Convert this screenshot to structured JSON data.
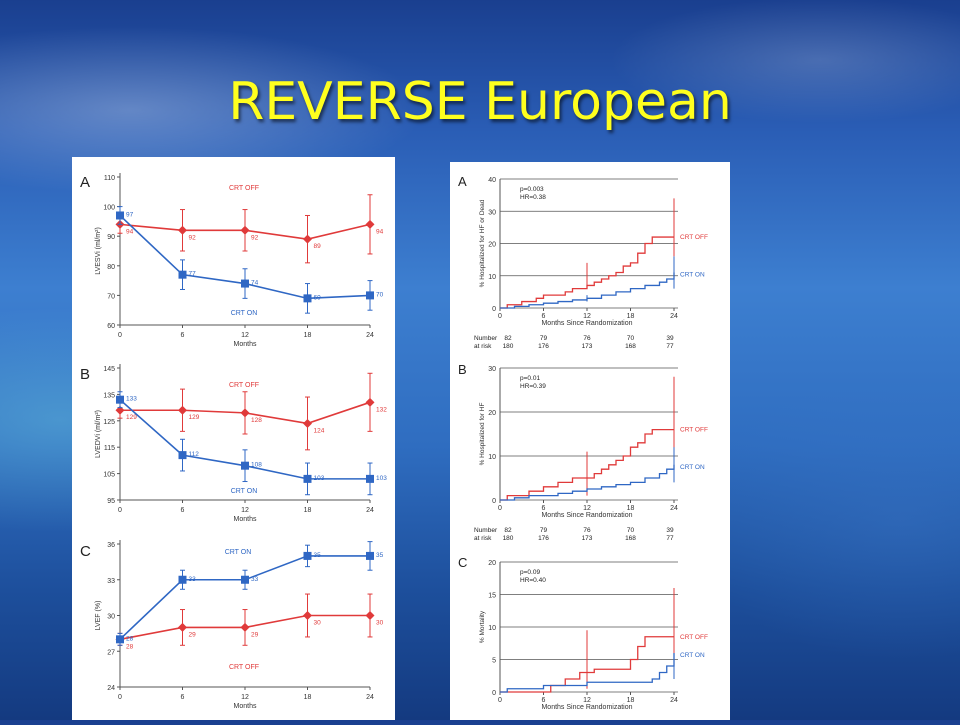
{
  "slide": {
    "title": "REVERSE European"
  },
  "colors": {
    "crt_off": "#e03a3a",
    "crt_on": "#2f67c4",
    "title": "#ffff1e"
  },
  "chart_data": [
    {
      "id": "A",
      "type": "line",
      "panel_letter": "A",
      "xlabel": "Months",
      "ylabel": "LVESVi (ml/m²)",
      "x": [
        0,
        6,
        12,
        18,
        24
      ],
      "xlim": [
        0,
        24
      ],
      "ylim": [
        60,
        110
      ],
      "yticks": [
        60,
        70,
        80,
        90,
        100,
        110
      ],
      "xticks": [
        0,
        6,
        12,
        18,
        24
      ],
      "series": [
        {
          "name": "CRT OFF",
          "values": [
            94,
            92,
            92,
            89,
            94
          ],
          "labels": [
            "94",
            "92",
            "92",
            "89",
            "94"
          ],
          "err": [
            3,
            7,
            7,
            8,
            10
          ]
        },
        {
          "name": "CRT ON",
          "values": [
            97,
            77,
            74,
            69,
            70
          ],
          "labels": [
            "97",
            "77",
            "74",
            "69",
            "70"
          ],
          "err": [
            3,
            5,
            5,
            5,
            5
          ]
        }
      ]
    },
    {
      "id": "B",
      "type": "line",
      "panel_letter": "B",
      "xlabel": "Months",
      "ylabel": "LVEDVi (ml/m²)",
      "x": [
        0,
        6,
        12,
        18,
        24
      ],
      "xlim": [
        0,
        24
      ],
      "ylim": [
        95,
        145
      ],
      "yticks": [
        95,
        105,
        115,
        125,
        135,
        145
      ],
      "xticks": [
        0,
        6,
        12,
        18,
        24
      ],
      "series": [
        {
          "name": "CRT OFF",
          "values": [
            129,
            129,
            128,
            124,
            132
          ],
          "labels": [
            "129",
            "129",
            "128",
            "124",
            "132"
          ],
          "err": [
            3,
            8,
            8,
            10,
            11
          ]
        },
        {
          "name": "CRT ON",
          "values": [
            133,
            112,
            108,
            103,
            103
          ],
          "labels": [
            "133",
            "112",
            "108",
            "103",
            "103"
          ],
          "err": [
            3,
            6,
            6,
            6,
            6
          ]
        }
      ]
    },
    {
      "id": "C",
      "type": "line",
      "panel_letter": "C",
      "xlabel": "Months",
      "ylabel": "LVEF (%)",
      "x": [
        0,
        6,
        12,
        18,
        24
      ],
      "xlim": [
        0,
        24
      ],
      "ylim": [
        24,
        36
      ],
      "yticks": [
        24,
        27,
        30,
        33,
        36
      ],
      "xticks": [
        0,
        6,
        12,
        18,
        24
      ],
      "series": [
        {
          "name": "CRT OFF",
          "values": [
            28,
            29,
            29,
            30,
            30
          ],
          "labels": [
            "28",
            "29",
            "29",
            "30",
            "30"
          ],
          "err": [
            0.5,
            1.5,
            1.5,
            1.8,
            1.8
          ]
        },
        {
          "name": "CRT ON",
          "values": [
            28,
            33,
            33,
            35,
            35
          ],
          "labels": [
            "28",
            "33",
            "33",
            "35",
            "35"
          ],
          "err": [
            0.5,
            0.8,
            0.8,
            0.9,
            1.2
          ]
        }
      ]
    },
    {
      "id": "RA",
      "type": "line",
      "panel_letter": "A",
      "xlabel": "Months Since Randomization",
      "ylabel": "% Hospitalized for HF or Dead",
      "xlim": [
        0,
        24
      ],
      "ylim": [
        0,
        40
      ],
      "yticks": [
        0,
        10,
        20,
        30,
        40
      ],
      "xticks": [
        0,
        6,
        12,
        18,
        24
      ],
      "stats": [
        "p=0.003",
        "HR=0.38"
      ],
      "series": [
        {
          "name": "CRT OFF",
          "x": [
            0,
            1,
            2,
            3,
            4,
            5,
            6,
            7,
            8,
            9,
            10,
            11,
            12,
            13,
            14,
            15,
            16,
            17,
            18,
            19,
            20,
            21,
            22,
            23,
            24
          ],
          "values": [
            0,
            1,
            1,
            2,
            2,
            3,
            4,
            4,
            4,
            5,
            6,
            6,
            7,
            8,
            9,
            10,
            11,
            13,
            14,
            17,
            20,
            22,
            22,
            22,
            22
          ],
          "errbar": [
            [
              12,
              7,
              14
            ],
            [
              24,
              16,
              34
            ]
          ]
        },
        {
          "name": "CRT ON",
          "x": [
            0,
            2,
            4,
            6,
            8,
            10,
            12,
            14,
            16,
            18,
            20,
            22,
            23,
            24
          ],
          "values": [
            0,
            0.5,
            1,
            1.5,
            2,
            2.5,
            3,
            4,
            5,
            6,
            7,
            8,
            9,
            11
          ],
          "errbar": [
            [
              12,
              2,
              4
            ],
            [
              24,
              6,
              16
            ]
          ]
        }
      ],
      "at_risk": {
        "label1": "Number",
        "label2": "at risk",
        "crt_off": [
          "82",
          "79",
          "76",
          "70",
          "39"
        ],
        "crt_on": [
          "180",
          "176",
          "173",
          "168",
          "77"
        ]
      }
    },
    {
      "id": "RB",
      "type": "line",
      "panel_letter": "B",
      "xlabel": "Months Since Randomization",
      "ylabel": "% Hospitalized for HF",
      "xlim": [
        0,
        24
      ],
      "ylim": [
        0,
        30
      ],
      "yticks": [
        0,
        10,
        20,
        30
      ],
      "xticks": [
        0,
        6,
        12,
        18,
        24
      ],
      "stats": [
        "p=0.01",
        "HR=0.39"
      ],
      "series": [
        {
          "name": "CRT OFF",
          "x": [
            0,
            1,
            2,
            4,
            6,
            8,
            10,
            12,
            13,
            14,
            15,
            16,
            17,
            18,
            19,
            20,
            21,
            22,
            23,
            24
          ],
          "values": [
            0,
            1,
            1,
            2,
            3,
            4,
            5,
            5,
            6,
            7,
            8,
            9,
            10,
            12,
            13,
            15,
            16,
            16,
            16,
            16
          ],
          "errbar": [
            [
              12,
              1,
              11
            ],
            [
              24,
              6,
              28
            ]
          ]
        },
        {
          "name": "CRT ON",
          "x": [
            0,
            2,
            4,
            6,
            8,
            10,
            12,
            14,
            16,
            18,
            20,
            22,
            23,
            24
          ],
          "values": [
            0,
            0.5,
            1,
            1,
            1.5,
            2,
            2.5,
            3,
            3.5,
            4,
            5,
            6,
            7,
            8
          ],
          "errbar": [
            [
              24,
              4,
              12
            ]
          ]
        }
      ],
      "at_risk": {
        "label1": "Number",
        "label2": "at risk",
        "crt_off": [
          "82",
          "79",
          "76",
          "70",
          "39"
        ],
        "crt_on": [
          "180",
          "176",
          "173",
          "168",
          "77"
        ]
      }
    },
    {
      "id": "RC",
      "type": "line",
      "panel_letter": "C",
      "xlabel": "Months Since Randomization",
      "ylabel": "% Mortality",
      "xlim": [
        0,
        24
      ],
      "ylim": [
        0,
        20
      ],
      "yticks": [
        0,
        5,
        10,
        15,
        20
      ],
      "xticks": [
        0,
        6,
        12,
        18,
        24
      ],
      "stats": [
        "p=0.09",
        "HR=0.40"
      ],
      "series": [
        {
          "name": "CRT OFF",
          "x": [
            0,
            5,
            7,
            9,
            11,
            13,
            15,
            17,
            18,
            19,
            20,
            21,
            22,
            24
          ],
          "values": [
            0,
            0,
            1,
            2,
            3,
            3.5,
            3.5,
            3.5,
            5,
            7,
            8.5,
            8.5,
            8.5,
            8.5
          ],
          "errbar": [
            [
              12,
              0.5,
              9.5
            ],
            [
              24,
              4,
              16
            ]
          ]
        },
        {
          "name": "CRT ON",
          "x": [
            0,
            1,
            6,
            12,
            18,
            21,
            22,
            23,
            24
          ],
          "values": [
            0,
            0.5,
            1,
            1.5,
            1.5,
            2,
            3,
            4,
            6
          ],
          "errbar": [
            [
              24,
              2,
              6
            ]
          ]
        }
      ]
    }
  ]
}
